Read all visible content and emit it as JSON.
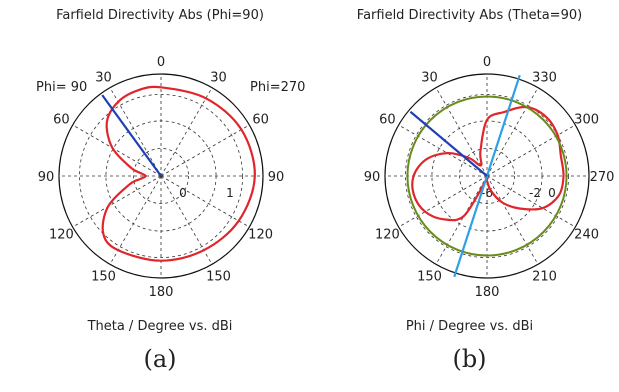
{
  "figure": {
    "caption_a": "(a)",
    "caption_b": "(b)"
  },
  "chart_data": [
    {
      "type": "polar",
      "title": "Farfield Directivity Abs (Phi=90)",
      "xlabel": "Theta / Degree vs. dBi",
      "left_label": "Phi= 90",
      "right_label": "Phi=270",
      "angle_labels": [
        "0",
        "30",
        "60",
        "90",
        "120",
        "150",
        "180",
        "150",
        "120",
        "90",
        "60",
        "30"
      ],
      "radial_labels": [
        "0",
        "1"
      ],
      "series": [
        {
          "color": "#e0252b",
          "points": [
            [
              0,
              0.87
            ],
            [
              30,
              0.88
            ],
            [
              60,
              0.91
            ],
            [
              90,
              0.92
            ],
            [
              120,
              0.88
            ],
            [
              150,
              0.84
            ],
            [
              180,
              0.83
            ],
            [
              210,
              0.84
            ],
            [
              225,
              0.8
            ],
            [
              240,
              0.6
            ],
            [
              255,
              0.32
            ],
            [
              262,
              0.2
            ],
            [
              270,
              0.15
            ],
            [
              278,
              0.2
            ],
            [
              285,
              0.3
            ],
            [
              300,
              0.55
            ],
            [
              315,
              0.75
            ],
            [
              330,
              0.84
            ],
            [
              345,
              0.87
            ],
            [
              360,
              0.87
            ]
          ]
        }
      ],
      "marker_line": {
        "angle": 36,
        "color": "#1f3fb5"
      }
    },
    {
      "type": "polar",
      "title": "Farfield Directivity Abs (Theta=90)",
      "xlabel": "Phi / Degree vs. dBi",
      "angle_labels": [
        "0",
        "330",
        "300",
        "270",
        "240",
        "210",
        "180",
        "150",
        "120",
        "90",
        "60",
        "30"
      ],
      "radial_labels": [
        "-6",
        "-2",
        "0"
      ],
      "series": [
        {
          "color": "#e0252b",
          "points": [
            [
              0,
              0.55
            ],
            [
              15,
              0.65
            ],
            [
              30,
              0.78
            ],
            [
              45,
              0.82
            ],
            [
              60,
              0.8
            ],
            [
              75,
              0.75
            ],
            [
              90,
              0.75
            ],
            [
              105,
              0.73
            ],
            [
              120,
              0.63
            ],
            [
              135,
              0.45
            ],
            [
              150,
              0.3
            ],
            [
              165,
              0.15
            ],
            [
              180,
              0.05
            ],
            [
              195,
              0.05
            ],
            [
              210,
              0.45
            ],
            [
              225,
              0.6
            ],
            [
              240,
              0.7
            ],
            [
              255,
              0.74
            ],
            [
              270,
              0.72
            ],
            [
              285,
              0.62
            ],
            [
              300,
              0.45
            ],
            [
              315,
              0.25
            ],
            [
              330,
              0.12
            ],
            [
              345,
              0.25
            ],
            [
              360,
              0.55
            ]
          ]
        },
        {
          "color": "#6a8a1a",
          "points": [
            [
              0,
              0.78
            ],
            [
              90,
              0.78
            ],
            [
              180,
              0.78
            ],
            [
              270,
              0.78
            ],
            [
              360,
              0.78
            ]
          ]
        }
      ],
      "marker_line": {
        "angle": 50,
        "color": "#1f3fb5"
      },
      "axis_line": {
        "angle": 18,
        "color": "#2ea0e6"
      }
    }
  ]
}
